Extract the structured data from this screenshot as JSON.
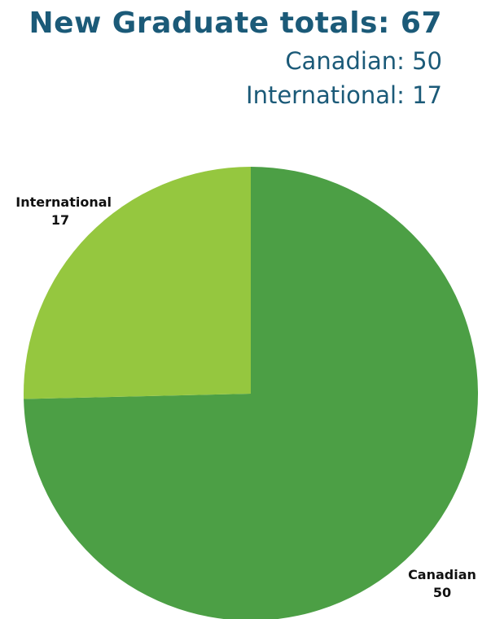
{
  "header": {
    "title": "New Graduate totals: 67",
    "line_canadian": "Canadian: 50",
    "line_international": "International: 17"
  },
  "colors": {
    "header_text": "#1b5a78",
    "canadian": "#4c9f45",
    "international": "#95c73f"
  },
  "chart_data": {
    "type": "pie",
    "title": "New Graduate totals: 67",
    "categories": [
      "Canadian",
      "International"
    ],
    "values": [
      50,
      17
    ],
    "legend": "none",
    "slices": [
      {
        "label": "Canadian",
        "value": 50,
        "color": "#4c9f45",
        "label_position": "bottom-right"
      },
      {
        "label": "International",
        "value": 17,
        "color": "#95c73f",
        "label_position": "top-left"
      }
    ]
  }
}
